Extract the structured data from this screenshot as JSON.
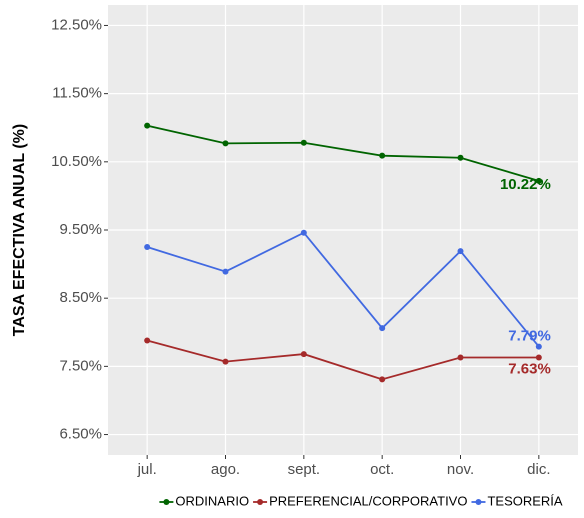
{
  "chart_data": {
    "type": "line",
    "y_label": "TASA EFECTIVA ANUAL (%)",
    "categories": [
      "jul.",
      "ago.",
      "sept.",
      "oct.",
      "nov.",
      "dic."
    ],
    "series": [
      {
        "name": "ORDINARIO",
        "color": "#006400",
        "values": [
          11.03,
          10.77,
          10.78,
          10.59,
          10.56,
          10.22
        ],
        "value_labels": [
          null,
          null,
          null,
          null,
          null,
          "10.22%"
        ]
      },
      {
        "name": "PREFERENCIAL/CORPORATIVO",
        "color": "#a52a2a",
        "values": [
          7.88,
          7.57,
          7.68,
          7.31,
          7.63,
          7.63
        ],
        "value_labels": [
          null,
          null,
          null,
          null,
          null,
          "7.63%"
        ]
      },
      {
        "name": "TESORERÍA",
        "color": "#4169e1",
        "values": [
          9.25,
          8.89,
          9.46,
          8.06,
          9.19,
          7.79
        ],
        "value_labels": [
          null,
          null,
          null,
          null,
          null,
          "7.79%"
        ]
      }
    ],
    "ylim": [
      6.2,
      12.8
    ],
    "yticks": [
      {
        "value": 6.5,
        "label": "6.50%"
      },
      {
        "value": 7.5,
        "label": "7.50%"
      },
      {
        "value": 8.5,
        "label": "8.50%"
      },
      {
        "value": 9.5,
        "label": "9.50%"
      },
      {
        "value": 10.5,
        "label": "10.50%"
      },
      {
        "value": 11.5,
        "label": "11.50%"
      },
      {
        "value": 12.5,
        "label": "12.50%"
      }
    ],
    "grid": true,
    "legend": "bottom"
  }
}
